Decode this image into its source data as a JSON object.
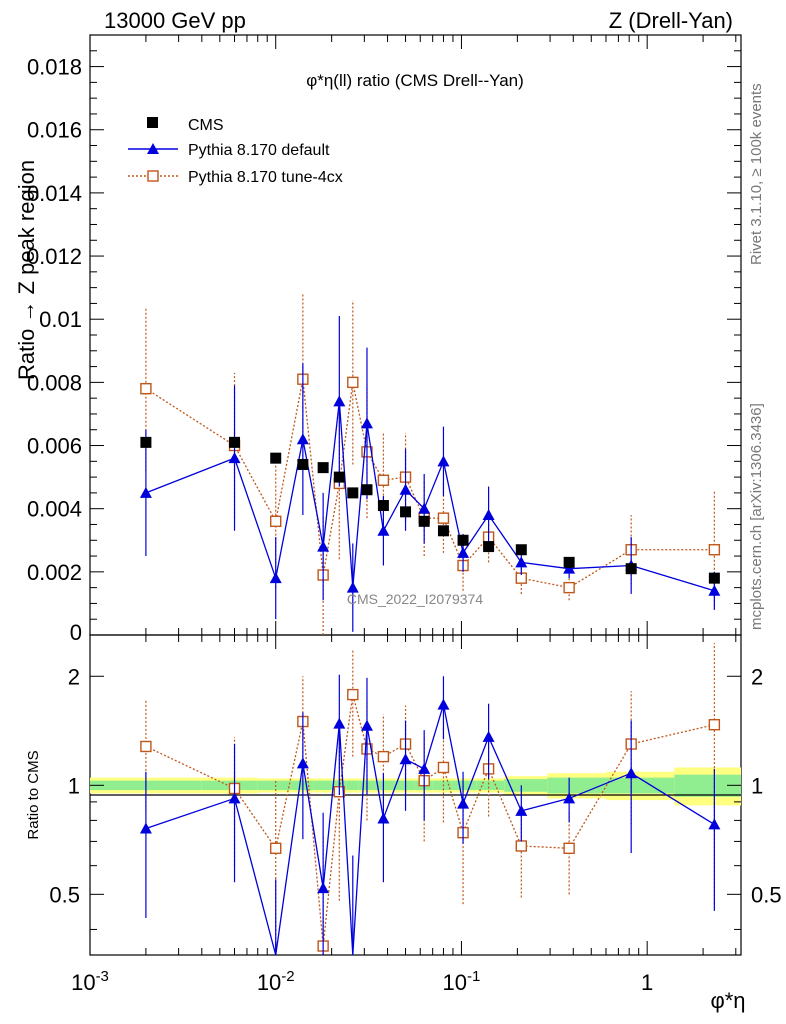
{
  "header": {
    "left": "13000 GeV pp",
    "right": "Z (Drell-Yan)"
  },
  "side_text": {
    "rivet": "Rivet 3.1.10, ≥ 100k events",
    "mcplots": "mcplots.cern.ch [arXiv:1306.3436]"
  },
  "watermark": "CMS_2022_I2079374",
  "chart_data": [
    {
      "type": "scatter",
      "title": "φ*η(ll) ratio (CMS Drell--Yan)",
      "xlabel": "φ*η",
      "ylabel": "Ratio → Z peak region",
      "xscale": "log",
      "xlim": [
        0.001,
        3.2
      ],
      "ylim": [
        0,
        0.019
      ],
      "yticks": [
        0.002,
        0.004,
        0.006,
        0.008,
        0.01,
        0.012,
        0.014,
        0.016,
        0.018
      ],
      "ytick_labels": [
        "0.002",
        "0.004",
        "0.006",
        "0.008",
        "0.01",
        "0.012",
        "0.014",
        "0.016",
        "0.018"
      ],
      "x_labels": [
        "10^-3",
        "10^-2",
        "10^-1",
        "1"
      ],
      "legend_position": "top-left",
      "series": [
        {
          "name": "CMS",
          "style": "black-square",
          "color": "#000000",
          "x": [
            0.002,
            0.006,
            0.01,
            0.014,
            0.018,
            0.022,
            0.026,
            0.031,
            0.038,
            0.05,
            0.063,
            0.08,
            0.102,
            0.14,
            0.21,
            0.38,
            0.82,
            2.3
          ],
          "y": [
            0.0061,
            0.0061,
            0.0056,
            0.0054,
            0.0053,
            0.005,
            0.0045,
            0.0046,
            0.0041,
            0.0039,
            0.0036,
            0.0033,
            0.003,
            0.0028,
            0.0027,
            0.0023,
            0.0021,
            0.0018
          ]
        },
        {
          "name": "Pythia 8.170 default",
          "style": "blue-triangle",
          "color": "#0000dd",
          "x": [
            0.002,
            0.006,
            0.01,
            0.014,
            0.018,
            0.022,
            0.026,
            0.031,
            0.038,
            0.05,
            0.063,
            0.08,
            0.102,
            0.14,
            0.21,
            0.38,
            0.82,
            2.3
          ],
          "y": [
            0.0045,
            0.0056,
            0.0018,
            0.0062,
            0.0028,
            0.0074,
            0.0015,
            0.0067,
            0.0033,
            0.0046,
            0.004,
            0.0055,
            0.0026,
            0.0038,
            0.0023,
            0.0021,
            0.0022,
            0.0014
          ],
          "err": [
            0.002,
            0.0023,
            0.0013,
            0.0024,
            0.0017,
            0.0027,
            0.0014,
            0.0024,
            0.0011,
            0.0013,
            0.0011,
            0.0011,
            0.0006,
            0.0009,
            0.0004,
            0.0003,
            0.0009,
            0.0006
          ]
        },
        {
          "name": "Pythia 8.170 tune-4cx",
          "style": "orange-open-square",
          "color": "#c0561a",
          "x": [
            0.002,
            0.006,
            0.01,
            0.014,
            0.018,
            0.022,
            0.026,
            0.031,
            0.038,
            0.05,
            0.063,
            0.08,
            0.102,
            0.14,
            0.21,
            0.38,
            0.82,
            2.3
          ],
          "y": [
            0.0078,
            0.006,
            0.0036,
            0.0081,
            0.0019,
            0.0048,
            0.008,
            0.0058,
            0.0049,
            0.005,
            0.0037,
            0.0037,
            0.0022,
            0.0031,
            0.0018,
            0.0015,
            0.0027,
            0.0027
          ],
          "err": [
            0.0026,
            0.0023,
            0.0021,
            0.0027,
            0.0019,
            0.0024,
            0.0026,
            0.0021,
            0.0015,
            0.0014,
            0.0012,
            0.0011,
            0.0008,
            0.0008,
            0.0005,
            0.0004,
            0.0011,
            0.0019
          ]
        }
      ]
    },
    {
      "type": "scatter",
      "ylabel": "Ratio to CMS",
      "xlabel": "φ*η",
      "xscale": "log",
      "xlim": [
        0.001,
        3.2
      ],
      "ylim": [
        0.34,
        2.6
      ],
      "yticks": [
        0.5,
        1,
        2
      ],
      "ytick_labels": [
        "0.5",
        "1",
        "2"
      ],
      "band": {
        "x_edges": [
          0.001,
          0.004,
          0.008,
          0.012,
          0.016,
          0.02,
          0.024,
          0.028,
          0.034,
          0.044,
          0.056,
          0.07,
          0.09,
          0.12,
          0.17,
          0.29,
          0.6,
          1.4,
          3.2
        ],
        "inner": [
          0.03,
          0.03,
          0.03,
          0.03,
          0.03,
          0.03,
          0.03,
          0.03,
          0.03,
          0.03,
          0.03,
          0.03,
          0.03,
          0.03,
          0.04,
          0.05,
          0.05,
          0.07
        ],
        "outer": [
          0.05,
          0.05,
          0.045,
          0.045,
          0.045,
          0.045,
          0.045,
          0.045,
          0.045,
          0.045,
          0.045,
          0.045,
          0.045,
          0.045,
          0.06,
          0.08,
          0.09,
          0.12
        ]
      },
      "series": [
        {
          "name": "Pythia 8.170 default",
          "color": "#0000dd",
          "x": [
            0.002,
            0.006,
            0.01,
            0.014,
            0.018,
            0.022,
            0.026,
            0.031,
            0.038,
            0.05,
            0.063,
            0.08,
            0.102,
            0.14,
            0.21,
            0.38,
            0.82,
            2.3
          ],
          "y": [
            0.76,
            0.92,
            0.32,
            1.15,
            0.52,
            1.48,
            0.33,
            1.46,
            0.81,
            1.18,
            1.11,
            1.67,
            0.89,
            1.36,
            0.85,
            0.92,
            1.08,
            0.78
          ],
          "err": [
            0.33,
            0.38,
            0.23,
            0.44,
            0.32,
            0.54,
            0.31,
            0.52,
            0.27,
            0.33,
            0.31,
            0.33,
            0.2,
            0.32,
            0.15,
            0.13,
            0.43,
            0.33
          ]
        },
        {
          "name": "Pythia 8.170 tune-4cx",
          "color": "#c0561a",
          "x": [
            0.002,
            0.006,
            0.01,
            0.014,
            0.018,
            0.022,
            0.026,
            0.031,
            0.038,
            0.05,
            0.063,
            0.08,
            0.102,
            0.14,
            0.21,
            0.38,
            0.82,
            2.3
          ],
          "y": [
            1.28,
            0.98,
            0.67,
            1.5,
            0.36,
            0.96,
            1.78,
            1.26,
            1.2,
            1.3,
            1.03,
            1.12,
            0.74,
            1.11,
            0.68,
            0.67,
            1.3,
            1.47
          ],
          "err": [
            0.43,
            0.38,
            0.37,
            0.5,
            0.36,
            0.48,
            0.58,
            0.46,
            0.37,
            0.36,
            0.33,
            0.33,
            0.27,
            0.29,
            0.19,
            0.17,
            0.52,
            1.0
          ]
        }
      ]
    }
  ]
}
